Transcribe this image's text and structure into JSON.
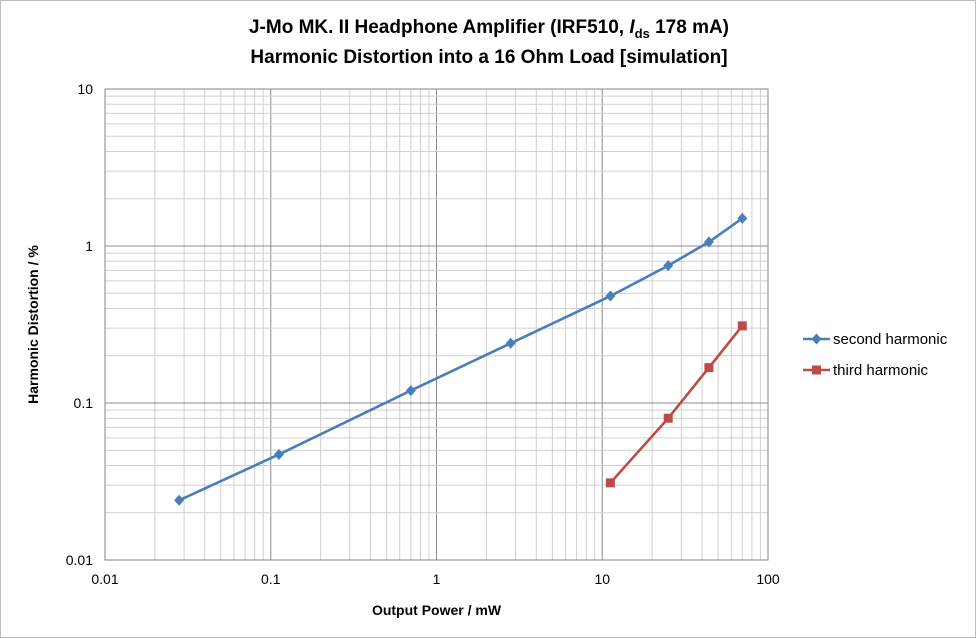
{
  "chart_data": {
    "type": "line",
    "title_line1": {
      "prefix": "J-Mo MK. II Headphone Amplifier (IRF510, ",
      "italic": "I",
      "subscript": "ds",
      "suffix": " 178 mA)"
    },
    "title_line2": "Harmonic Distortion into a 16 Ohm Load [simulation]",
    "xlabel": "Output Power / mW",
    "ylabel": "Harmonic Distortion / %",
    "x_scale": "log",
    "y_scale": "log",
    "xlim": [
      0.01,
      100
    ],
    "ylim": [
      0.01,
      10
    ],
    "x_ticks": [
      {
        "value": 0.01,
        "label": "0.01"
      },
      {
        "value": 0.1,
        "label": "0.1"
      },
      {
        "value": 1,
        "label": "1"
      },
      {
        "value": 10,
        "label": "10"
      },
      {
        "value": 100,
        "label": "100"
      }
    ],
    "y_ticks": [
      {
        "value": 0.01,
        "label": "0.01"
      },
      {
        "value": 0.1,
        "label": "0.1"
      },
      {
        "value": 1,
        "label": "1"
      },
      {
        "value": 10,
        "label": "10"
      }
    ],
    "grid": true,
    "legend_position": "right",
    "series": [
      {
        "name": "second harmonic",
        "color": "#4a7ebb",
        "marker": "diamond",
        "points": [
          {
            "x": 0.028,
            "y": 0.024
          },
          {
            "x": 0.112,
            "y": 0.047
          },
          {
            "x": 0.7,
            "y": 0.12
          },
          {
            "x": 2.8,
            "y": 0.24
          },
          {
            "x": 11.2,
            "y": 0.48
          },
          {
            "x": 25,
            "y": 0.75
          },
          {
            "x": 44,
            "y": 1.06
          },
          {
            "x": 70,
            "y": 1.5
          }
        ]
      },
      {
        "name": "third harmonic",
        "color": "#be4b48",
        "marker": "square",
        "points": [
          {
            "x": 11.2,
            "y": 0.031
          },
          {
            "x": 25,
            "y": 0.08
          },
          {
            "x": 44,
            "y": 0.168
          },
          {
            "x": 70,
            "y": 0.31
          }
        ]
      }
    ]
  }
}
